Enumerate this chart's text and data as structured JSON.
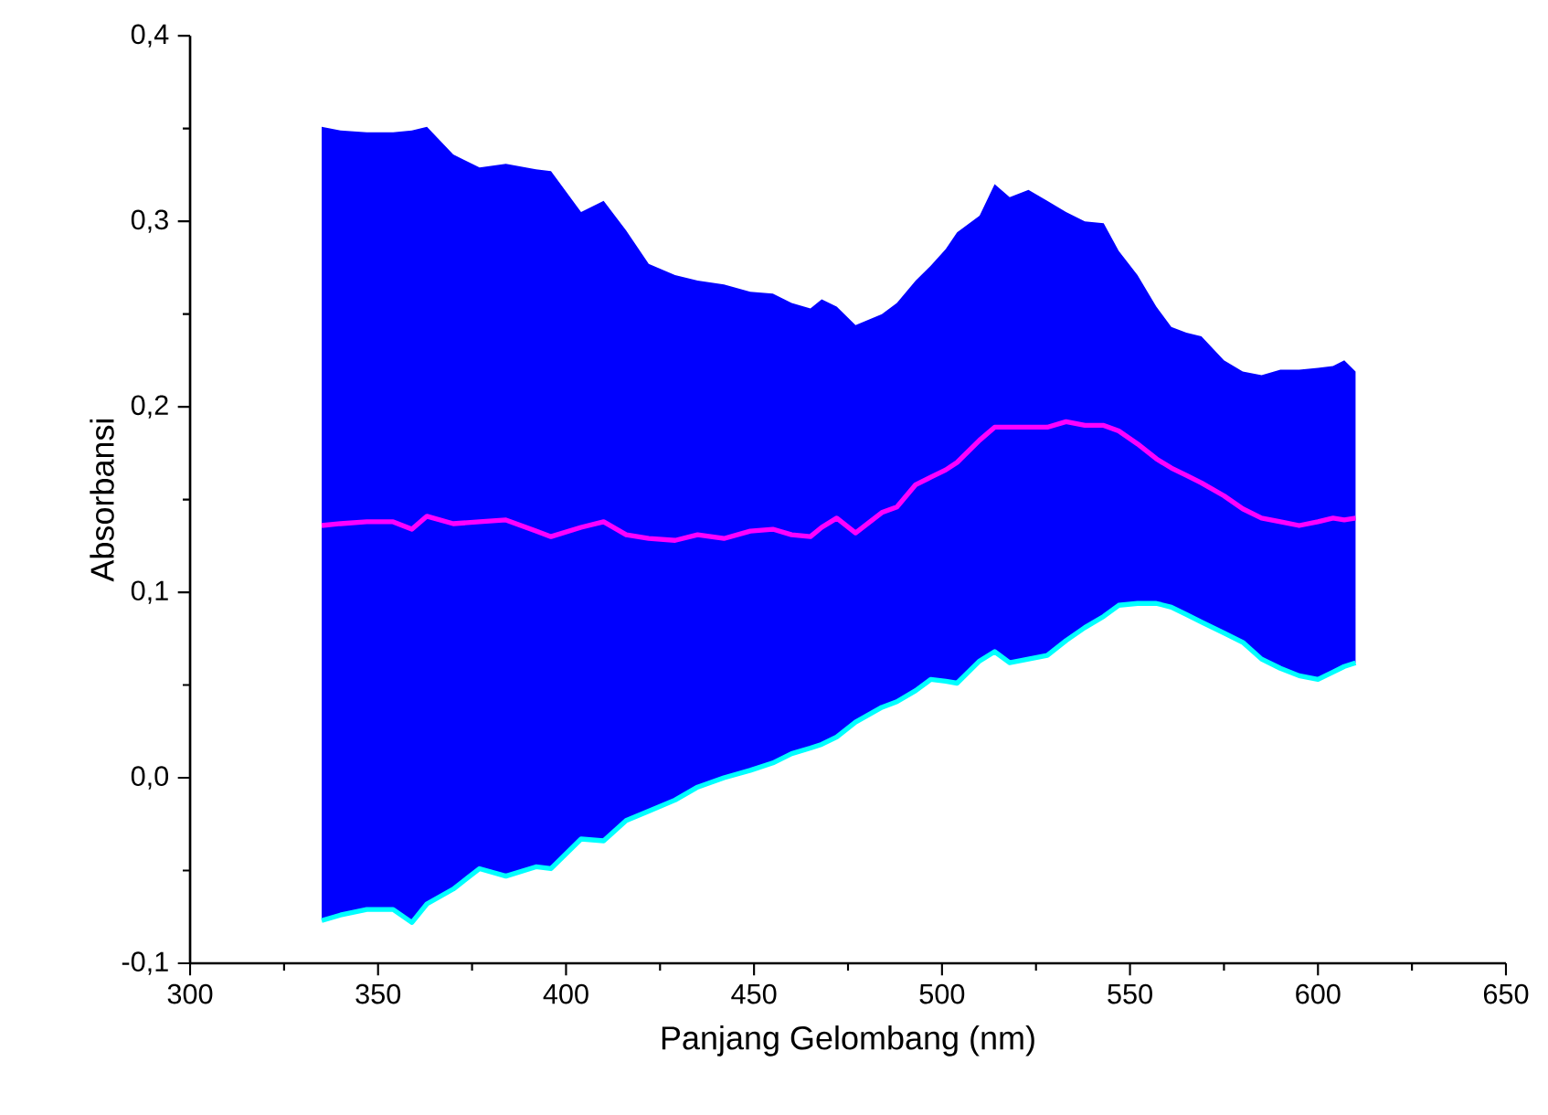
{
  "chart_data": {
    "type": "line",
    "xlabel": "Panjang Gelombang (nm)",
    "ylabel": "Absorbansi",
    "x": [
      335,
      340,
      347,
      354,
      359,
      363,
      370,
      377,
      384,
      392,
      396,
      404,
      410,
      416,
      422,
      429,
      435,
      442,
      449,
      455,
      460,
      465,
      468,
      472,
      477,
      484,
      488,
      493,
      497,
      501,
      504,
      510,
      514,
      518,
      523,
      528,
      533,
      538,
      543,
      547,
      552,
      557,
      561,
      565,
      569,
      575,
      580,
      585,
      590,
      595,
      600,
      604,
      607,
      610
    ],
    "series": [
      {
        "color": "#ff00ff",
        "values": [
          0.136,
          0.137,
          0.138,
          0.138,
          0.134,
          0.141,
          0.137,
          0.138,
          0.139,
          0.133,
          0.13,
          0.135,
          0.138,
          0.131,
          0.129,
          0.128,
          0.131,
          0.129,
          0.133,
          0.134,
          0.131,
          0.13,
          0.135,
          0.14,
          0.132,
          0.143,
          0.146,
          0.158,
          0.162,
          0.166,
          0.17,
          0.182,
          0.189,
          0.189,
          0.189,
          0.189,
          0.192,
          0.19,
          0.19,
          0.187,
          0.18,
          0.172,
          0.167,
          0.163,
          0.159,
          0.152,
          0.145,
          0.14,
          0.138,
          0.136,
          0.138,
          0.14,
          0.139,
          0.14
        ],
        "upper": [
          0.351,
          0.349,
          0.348,
          0.348,
          0.349,
          0.351,
          0.336,
          0.329,
          0.331,
          0.328,
          0.327,
          0.305,
          0.311,
          0.295,
          0.277,
          0.271,
          0.268,
          0.266,
          0.262,
          0.261,
          0.256,
          0.253,
          0.258,
          0.254,
          0.244,
          0.25,
          0.256,
          0.268,
          0.276,
          0.285,
          0.294,
          0.303,
          0.32,
          0.313,
          0.317,
          0.311,
          0.305,
          0.3,
          0.299,
          0.284,
          0.271,
          0.254,
          0.243,
          0.24,
          0.238,
          0.225,
          0.219,
          0.217,
          0.22,
          0.22,
          0.221,
          0.222,
          0.225,
          0.219
        ],
        "lower": [
          -0.077,
          -0.074,
          -0.071,
          -0.071,
          -0.078,
          -0.068,
          -0.06,
          -0.049,
          -0.053,
          -0.048,
          -0.049,
          -0.033,
          -0.034,
          -0.023,
          -0.018,
          -0.012,
          -0.005,
          0.0,
          0.004,
          0.008,
          0.013,
          0.016,
          0.018,
          0.022,
          0.03,
          0.038,
          0.041,
          0.047,
          0.053,
          0.052,
          0.051,
          0.063,
          0.068,
          0.062,
          0.064,
          0.066,
          0.074,
          0.081,
          0.087,
          0.093,
          0.094,
          0.094,
          0.092,
          0.088,
          0.084,
          0.078,
          0.073,
          0.064,
          0.059,
          0.055,
          0.053,
          0.057,
          0.06,
          0.062
        ]
      },
      {
        "color": "#00ffff",
        "values": [
          -0.077,
          -0.074,
          -0.071,
          -0.071,
          -0.078,
          -0.068,
          -0.06,
          -0.049,
          -0.053,
          -0.048,
          -0.049,
          -0.033,
          -0.034,
          -0.023,
          -0.018,
          -0.012,
          -0.005,
          0.0,
          0.004,
          0.008,
          0.013,
          0.016,
          0.018,
          0.022,
          0.03,
          0.038,
          0.041,
          0.047,
          0.053,
          0.052,
          0.051,
          0.063,
          0.068,
          0.062,
          0.064,
          0.066,
          0.074,
          0.081,
          0.087,
          0.093,
          0.094,
          0.094,
          0.092,
          0.088,
          0.084,
          0.078,
          0.073,
          0.064,
          0.059,
          0.055,
          0.053,
          0.057,
          0.06,
          0.062
        ]
      }
    ],
    "xlim": [
      300,
      650
    ],
    "xticks": [
      300,
      {
        "value": 325,
        "label": null
      },
      350,
      {
        "value": 375,
        "label": null
      },
      400,
      {
        "value": 425,
        "label": null
      },
      450,
      {
        "value": 475,
        "label": null
      },
      500,
      {
        "value": 525,
        "label": null
      },
      550,
      {
        "value": 575,
        "label": null
      },
      600,
      {
        "value": 625,
        "label": null
      },
      650
    ],
    "ylim": [
      -0.1,
      0.4
    ],
    "yticks": [
      {
        "value": -0.1,
        "label": "-0,1"
      },
      {
        "value": -0.05,
        "label": null
      },
      {
        "value": 0.0,
        "label": "0,0"
      },
      {
        "value": 0.05,
        "label": null
      },
      {
        "value": 0.1,
        "label": "0,1"
      },
      {
        "value": 0.15,
        "label": null
      },
      {
        "value": 0.2,
        "label": "0,2"
      },
      {
        "value": 0.25,
        "label": null
      },
      {
        "value": 0.3,
        "label": "0,3"
      },
      {
        "value": 0.35,
        "label": null
      },
      {
        "value": 0.4,
        "label": "0,4"
      }
    ],
    "grid": false,
    "line_style": "solid",
    "marker": "none"
  }
}
